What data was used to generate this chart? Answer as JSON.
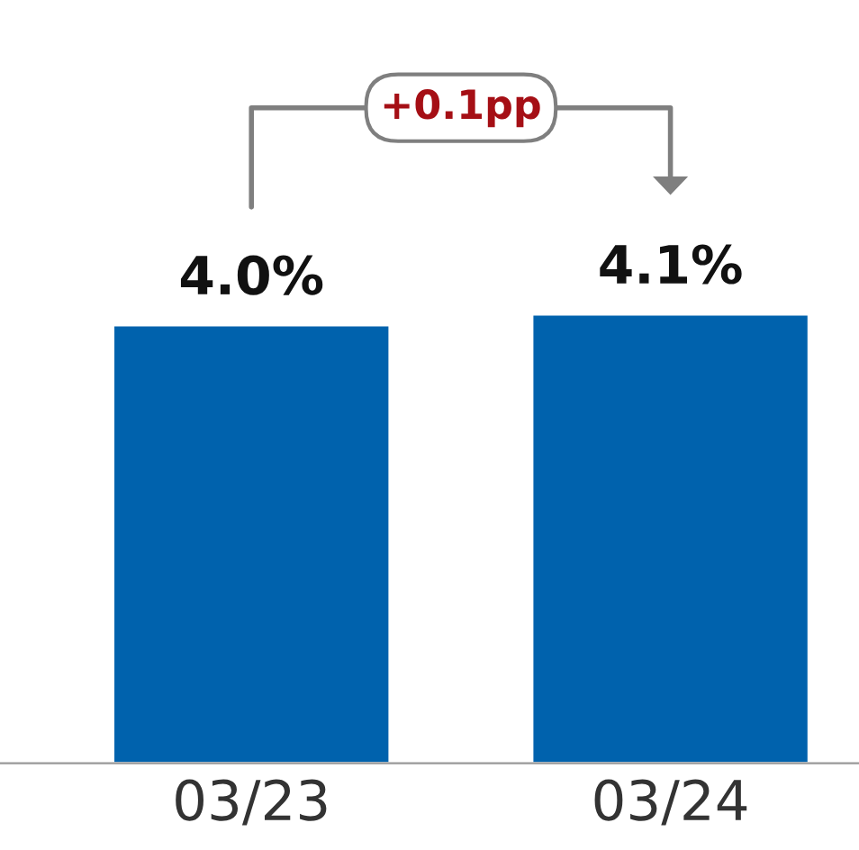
{
  "chart_data": {
    "type": "bar",
    "categories": [
      "03/23",
      "03/24"
    ],
    "values": [
      4.0,
      4.1
    ],
    "color": "#0062ad",
    "data_labels": true,
    "value_labels": [
      "4.0%",
      "4.1%"
    ],
    "annotations": [
      "+0.1pp"
    ],
    "grid": false,
    "legend": false
  }
}
